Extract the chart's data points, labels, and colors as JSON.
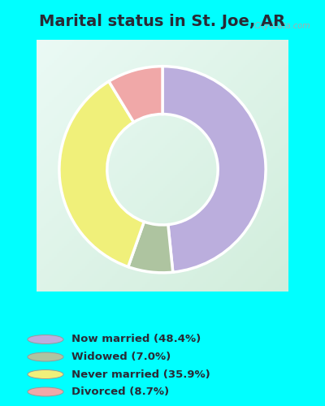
{
  "title": "Marital status in St. Joe, AR",
  "slices": [
    48.4,
    7.0,
    35.9,
    8.7
  ],
  "colors": [
    "#bbaedd",
    "#aec4a0",
    "#f0f07a",
    "#f0a8a8"
  ],
  "labels": [
    "Now married (48.4%)",
    "Widowed (7.0%)",
    "Never married (35.9%)",
    "Divorced (8.7%)"
  ],
  "legend_marker_colors": [
    "#bbaedd",
    "#aec4a0",
    "#f0f07a",
    "#f0a8a8"
  ],
  "title_bg": "#00ffff",
  "chart_bg_top": "#e8f5ee",
  "chart_bg_bottom": "#c8e8d0",
  "legend_bg": "#00ffff",
  "title_color": "#2a2a35",
  "title_fontsize": 14,
  "watermark": "City-Data.com",
  "start_angle": 90,
  "donut_width": 0.38
}
